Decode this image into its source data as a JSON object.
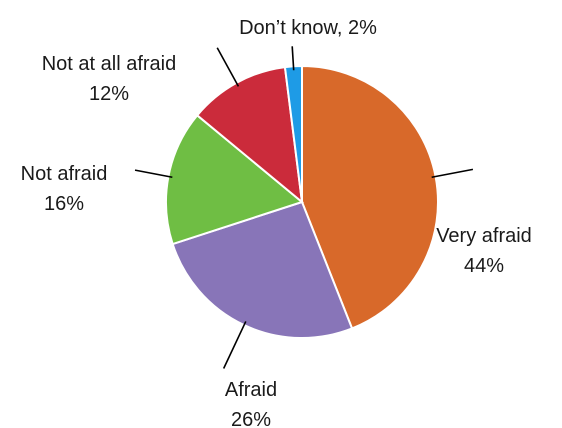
{
  "chart_data": {
    "type": "pie",
    "title": "",
    "slices": [
      {
        "name": "Very afraid",
        "value": 44,
        "value_label": "44%",
        "color": "#D8692A"
      },
      {
        "name": "Afraid",
        "value": 26,
        "value_label": "26%",
        "color": "#8875B8"
      },
      {
        "name": "Not afraid",
        "value": 16,
        "value_label": "16%",
        "color": "#6FBE44"
      },
      {
        "name": "Not at all afraid",
        "value": 12,
        "value_label": "12%",
        "color": "#CB2B3B"
      },
      {
        "name": "Don’t know",
        "value": 2,
        "value_label": "2%",
        "color": "#1E9BE6"
      }
    ],
    "start": "12 o'clock",
    "direction": "clockwise",
    "legend": "none",
    "labels": "outside with leader lines"
  }
}
